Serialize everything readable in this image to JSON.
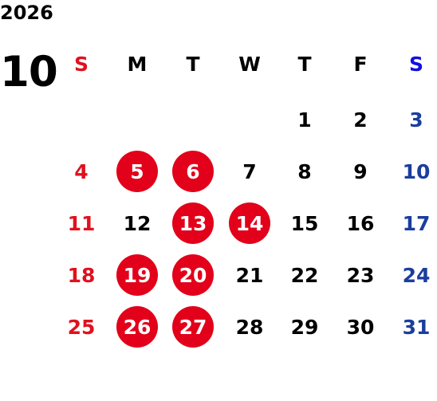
{
  "calendar": {
    "year": "2026",
    "month": "10",
    "weekdays": [
      "S",
      "M",
      "T",
      "W",
      "T",
      "F",
      "S"
    ],
    "colors": {
      "sunday": "#e0111f",
      "saturday": "#1a3e9e",
      "saturday_header": "#1010e0",
      "weekday": "#000000",
      "holiday_circle": "#e2001a",
      "holiday_text": "#ffffff"
    },
    "weeks": [
      [
        {
          "day": "",
          "holiday": false
        },
        {
          "day": "",
          "holiday": false
        },
        {
          "day": "",
          "holiday": false
        },
        {
          "day": "",
          "holiday": false
        },
        {
          "day": "1",
          "holiday": false
        },
        {
          "day": "2",
          "holiday": false
        },
        {
          "day": "3",
          "holiday": false
        }
      ],
      [
        {
          "day": "4",
          "holiday": false
        },
        {
          "day": "5",
          "holiday": true
        },
        {
          "day": "6",
          "holiday": true
        },
        {
          "day": "7",
          "holiday": false
        },
        {
          "day": "8",
          "holiday": false
        },
        {
          "day": "9",
          "holiday": false
        },
        {
          "day": "10",
          "holiday": false
        }
      ],
      [
        {
          "day": "11",
          "holiday": false
        },
        {
          "day": "12",
          "holiday": false
        },
        {
          "day": "13",
          "holiday": true
        },
        {
          "day": "14",
          "holiday": true
        },
        {
          "day": "15",
          "holiday": false
        },
        {
          "day": "16",
          "holiday": false
        },
        {
          "day": "17",
          "holiday": false
        }
      ],
      [
        {
          "day": "18",
          "holiday": false
        },
        {
          "day": "19",
          "holiday": true
        },
        {
          "day": "20",
          "holiday": true
        },
        {
          "day": "21",
          "holiday": false
        },
        {
          "day": "22",
          "holiday": false
        },
        {
          "day": "23",
          "holiday": false
        },
        {
          "day": "24",
          "holiday": false
        }
      ],
      [
        {
          "day": "25",
          "holiday": false
        },
        {
          "day": "26",
          "holiday": true
        },
        {
          "day": "27",
          "holiday": true
        },
        {
          "day": "28",
          "holiday": false
        },
        {
          "day": "29",
          "holiday": false
        },
        {
          "day": "30",
          "holiday": false
        },
        {
          "day": "31",
          "holiday": false
        }
      ]
    ]
  }
}
